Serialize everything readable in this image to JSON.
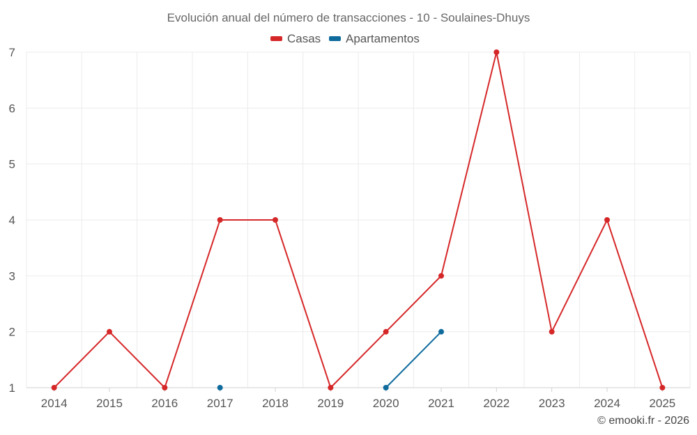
{
  "chart_data": {
    "type": "line",
    "title": "Evolución anual del número de transacciones - 10 - Soulaines-Dhuys",
    "categories": [
      "2014",
      "2015",
      "2016",
      "2017",
      "2018",
      "2019",
      "2020",
      "2021",
      "2022",
      "2023",
      "2024",
      "2025"
    ],
    "ylim": [
      1,
      7
    ],
    "yticks": [
      1,
      2,
      3,
      4,
      5,
      6,
      7
    ],
    "grid": true,
    "legend_position": "top-center",
    "series": [
      {
        "name": "Casas",
        "color": "#d62728",
        "values": [
          1,
          2,
          1,
          4,
          4,
          1,
          2,
          3,
          7,
          2,
          4,
          1
        ]
      },
      {
        "name": "Apartamentos",
        "color": "#0e6b9c",
        "values": [
          null,
          null,
          null,
          1,
          null,
          null,
          1,
          2,
          null,
          null,
          null,
          null
        ]
      }
    ],
    "credit": "© emooki.fr - 2026"
  }
}
